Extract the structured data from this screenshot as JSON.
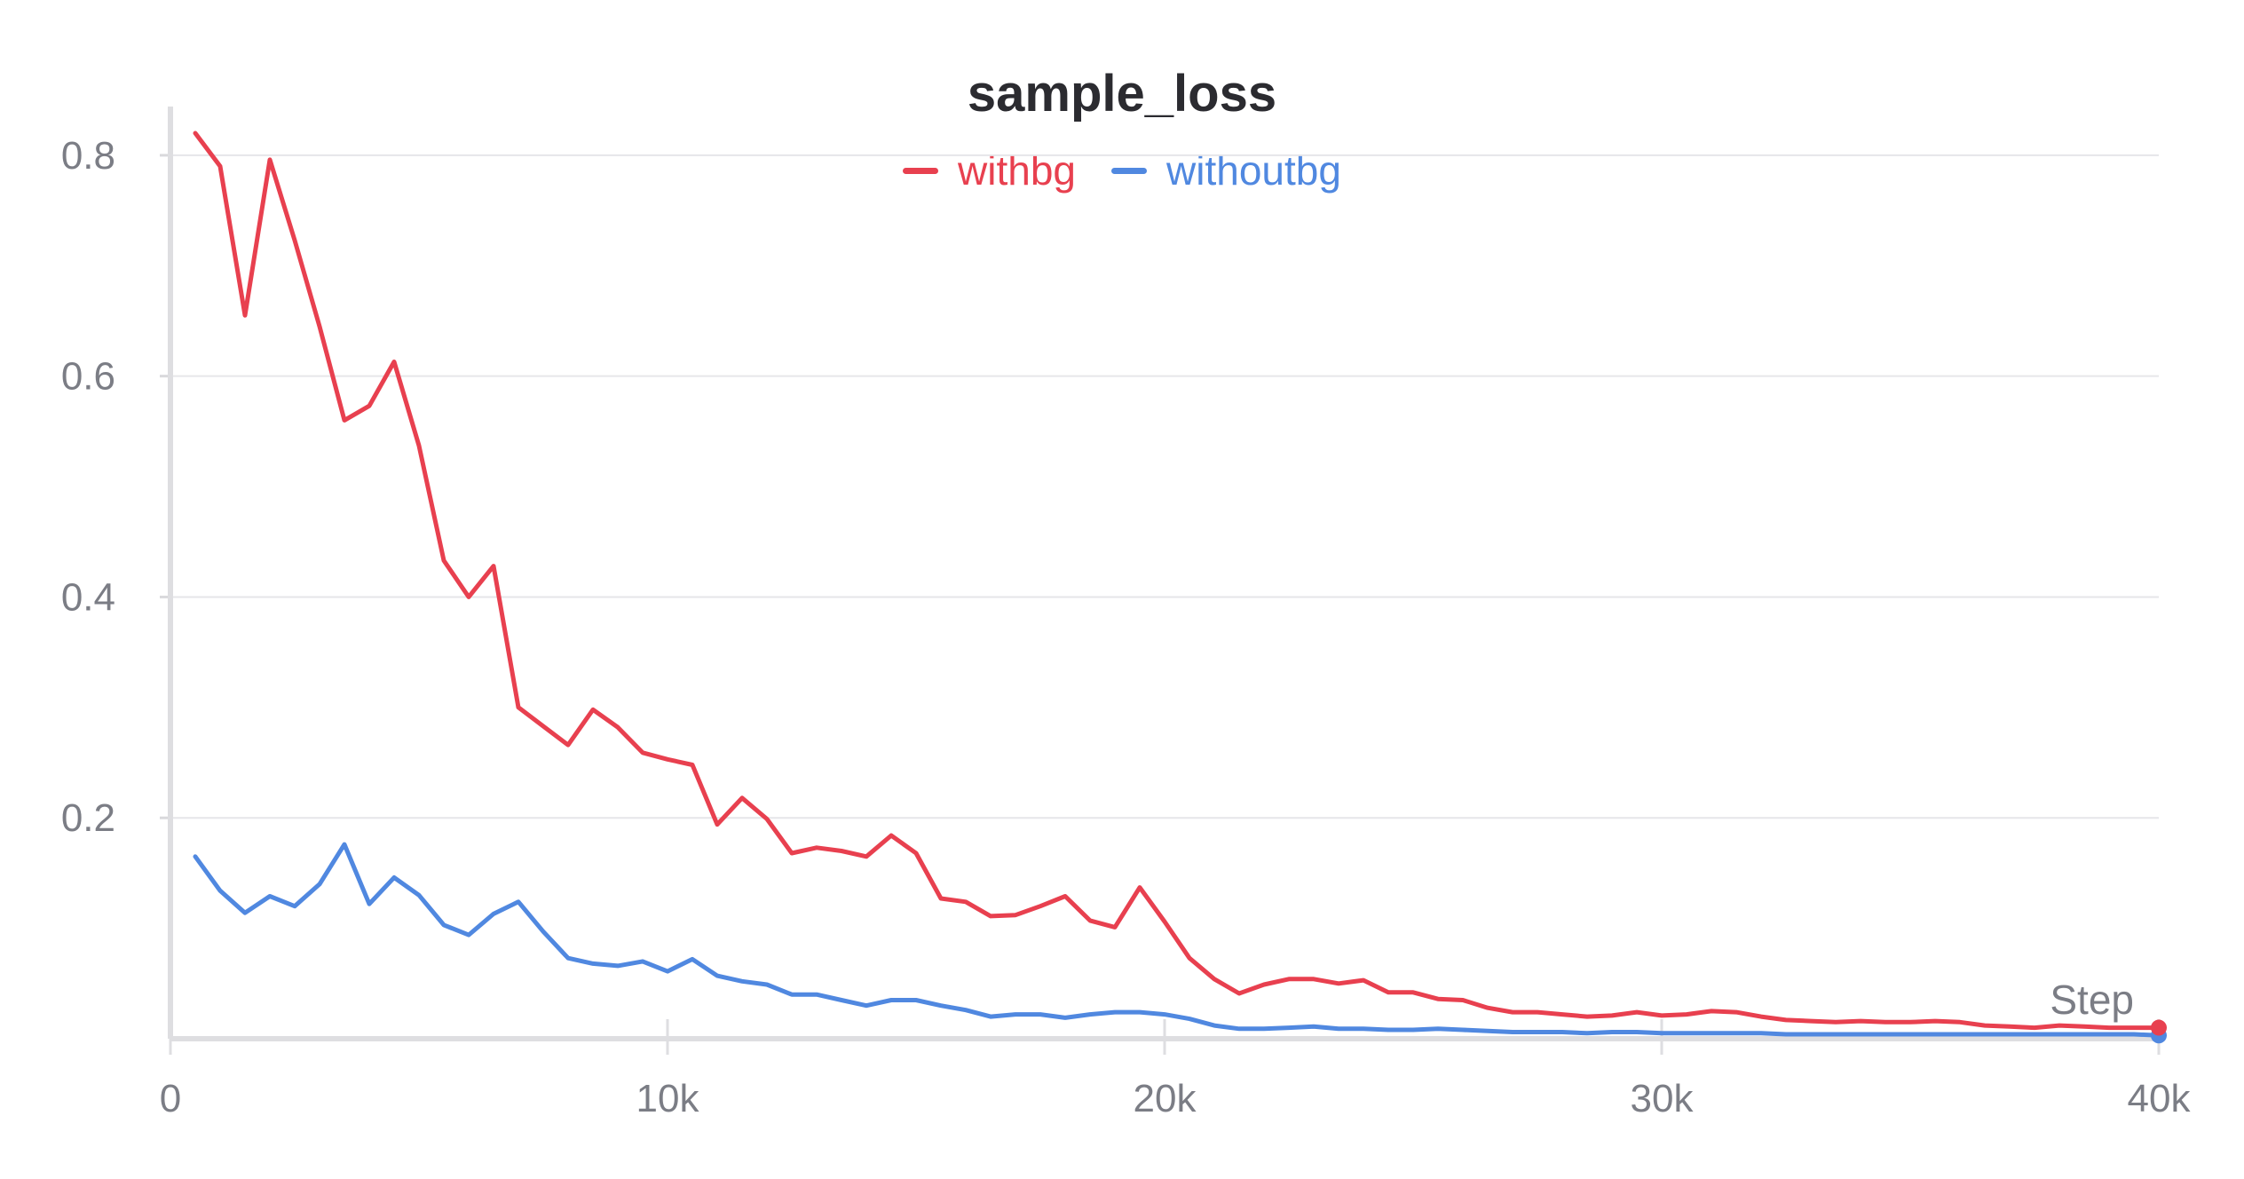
{
  "chart_data": {
    "type": "line",
    "title": "sample_loss",
    "xlabel": "Step",
    "ylabel": "",
    "xlim": [
      0,
      40000
    ],
    "ylim": [
      0,
      0.82
    ],
    "xticks": [
      0,
      10000,
      20000,
      30000,
      40000
    ],
    "xtick_labels": [
      "0",
      "10k",
      "20k",
      "30k",
      "40k"
    ],
    "yticks": [
      0.2,
      0.4,
      0.6,
      0.8
    ],
    "ytick_labels": [
      "0.2",
      "0.4",
      "0.6",
      "0.8"
    ],
    "grid": true,
    "legend": "top-center",
    "series": [
      {
        "name": "withbg",
        "color": "#e8404f",
        "x": [
          500,
          1000,
          1500,
          2000,
          2500,
          3000,
          3500,
          4000,
          4500,
          5000,
          5500,
          6000,
          6500,
          7000,
          7500,
          8000,
          8500,
          9000,
          9500,
          10000,
          10500,
          11000,
          11500,
          12000,
          12500,
          13000,
          13500,
          14000,
          14500,
          15000,
          15500,
          16000,
          16500,
          17000,
          17500,
          18000,
          18500,
          19000,
          19500,
          20000,
          20500,
          21000,
          21500,
          22000,
          22500,
          23000,
          23500,
          24000,
          24500,
          25000,
          25500,
          26000,
          26500,
          27000,
          27500,
          28000,
          28500,
          29000,
          29500,
          30000,
          30500,
          31000,
          31500,
          32000,
          32500,
          33000,
          33500,
          34000,
          34500,
          35000,
          35500,
          36000,
          36500,
          37000,
          37500,
          38000,
          38500,
          39000,
          39500,
          40000
        ],
        "y": [
          0.82,
          0.79,
          0.655,
          0.796,
          0.723,
          0.645,
          0.56,
          0.573,
          0.613,
          0.537,
          0.433,
          0.4,
          0.428,
          0.3,
          0.283,
          0.266,
          0.298,
          0.282,
          0.259,
          0.253,
          0.248,
          0.194,
          0.218,
          0.199,
          0.168,
          0.173,
          0.17,
          0.165,
          0.184,
          0.168,
          0.127,
          0.124,
          0.111,
          0.112,
          0.12,
          0.129,
          0.107,
          0.101,
          0.137,
          0.106,
          0.073,
          0.054,
          0.041,
          0.049,
          0.054,
          0.054,
          0.05,
          0.053,
          0.042,
          0.042,
          0.036,
          0.035,
          0.028,
          0.024,
          0.024,
          0.022,
          0.02,
          0.021,
          0.024,
          0.021,
          0.022,
          0.025,
          0.024,
          0.02,
          0.017,
          0.016,
          0.015,
          0.016,
          0.015,
          0.015,
          0.016,
          0.015,
          0.012,
          0.011,
          0.01,
          0.012,
          0.011,
          0.01,
          0.01,
          0.01
        ]
      },
      {
        "name": "withoutbg",
        "color": "#5088e0",
        "x": [
          500,
          1000,
          1500,
          2000,
          2500,
          3000,
          3500,
          4000,
          4500,
          5000,
          5500,
          6000,
          6500,
          7000,
          7500,
          8000,
          8500,
          9000,
          9500,
          10000,
          10500,
          11000,
          11500,
          12000,
          12500,
          13000,
          13500,
          14000,
          14500,
          15000,
          15500,
          16000,
          16500,
          17000,
          17500,
          18000,
          18500,
          19000,
          19500,
          20000,
          20500,
          21000,
          21500,
          22000,
          22500,
          23000,
          23500,
          24000,
          24500,
          25000,
          25500,
          26000,
          26500,
          27000,
          27500,
          28000,
          28500,
          29000,
          29500,
          30000,
          30500,
          31000,
          31500,
          32000,
          32500,
          33000,
          33500,
          34000,
          34500,
          35000,
          35500,
          36000,
          36500,
          37000,
          37500,
          38000,
          38500,
          39000,
          39500,
          40000
        ],
        "y": [
          0.165,
          0.134,
          0.114,
          0.129,
          0.12,
          0.14,
          0.176,
          0.122,
          0.146,
          0.13,
          0.103,
          0.094,
          0.113,
          0.124,
          0.097,
          0.073,
          0.068,
          0.066,
          0.07,
          0.061,
          0.072,
          0.057,
          0.052,
          0.049,
          0.04,
          0.04,
          0.035,
          0.03,
          0.035,
          0.035,
          0.03,
          0.026,
          0.02,
          0.022,
          0.022,
          0.019,
          0.022,
          0.024,
          0.024,
          0.022,
          0.018,
          0.012,
          0.009,
          0.009,
          0.01,
          0.011,
          0.009,
          0.009,
          0.008,
          0.008,
          0.009,
          0.008,
          0.007,
          0.006,
          0.006,
          0.006,
          0.005,
          0.006,
          0.006,
          0.005,
          0.005,
          0.005,
          0.005,
          0.005,
          0.004,
          0.004,
          0.004,
          0.004,
          0.004,
          0.004,
          0.004,
          0.004,
          0.004,
          0.004,
          0.004,
          0.004,
          0.004,
          0.004,
          0.004,
          0.003
        ]
      }
    ]
  }
}
